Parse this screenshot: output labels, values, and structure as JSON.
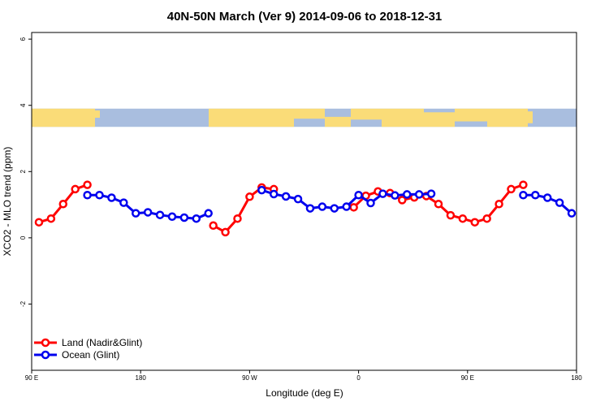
{
  "chart_data": {
    "type": "line",
    "title": "40N-50N March (Ver 9)   2014-09-06 to 2018-12-31",
    "xlabel": "Longitude (deg E)",
    "ylabel": "XCO2 - MLO trend (ppm)",
    "x_ticks": [
      {
        "value": 90,
        "label": "90 E"
      },
      {
        "value": 180,
        "label": "180"
      },
      {
        "value": 270,
        "label": "90 W"
      },
      {
        "value": 360,
        "label": "0"
      },
      {
        "value": 450,
        "label": "90 E"
      },
      {
        "value": 540,
        "label": "180"
      }
    ],
    "y_ticks": [
      {
        "value": -2,
        "label": "-2"
      },
      {
        "value": 0,
        "label": "0"
      },
      {
        "value": 2,
        "label": "2"
      },
      {
        "value": 4,
        "label": "4"
      },
      {
        "value": 6,
        "label": "6"
      }
    ],
    "xlim": [
      90,
      540
    ],
    "ylim": [
      -4,
      6.2
    ],
    "map_band": {
      "ylim": [
        3.35,
        3.9
      ],
      "land_color": "#fadc78",
      "ocean_color": "#a9bedf"
    },
    "legend_position": "bottom-left",
    "series": [
      {
        "name": "Land (Nadir&Glint)",
        "color": "#ff0000",
        "segments": [
          [
            [
              96,
              0.47
            ],
            [
              106,
              0.58
            ],
            [
              116,
              1.02
            ],
            [
              126,
              1.47
            ],
            [
              136,
              1.6
            ]
          ],
          [
            [
              240,
              0.37
            ],
            [
              250,
              0.17
            ],
            [
              260,
              0.58
            ],
            [
              270,
              1.24
            ],
            [
              280,
              1.52
            ],
            [
              290,
              1.47
            ]
          ],
          [
            [
              356,
              0.92
            ],
            [
              366,
              1.27
            ],
            [
              376,
              1.4
            ],
            [
              386,
              1.35
            ],
            [
              396,
              1.14
            ],
            [
              406,
              1.22
            ],
            [
              416,
              1.26
            ],
            [
              426,
              1.02
            ],
            [
              436,
              0.68
            ],
            [
              446,
              0.58
            ],
            [
              456,
              0.47
            ],
            [
              466,
              0.58
            ],
            [
              476,
              1.02
            ],
            [
              486,
              1.47
            ],
            [
              496,
              1.6
            ]
          ]
        ]
      },
      {
        "name": "Ocean (Glint)",
        "color": "#0000ee",
        "segments": [
          [
            [
              136,
              1.29
            ],
            [
              146,
              1.29
            ],
            [
              156,
              1.21
            ],
            [
              166,
              1.06
            ],
            [
              176,
              0.74
            ],
            [
              186,
              0.77
            ],
            [
              196,
              0.69
            ],
            [
              206,
              0.64
            ],
            [
              216,
              0.61
            ],
            [
              226,
              0.58
            ],
            [
              236,
              0.74
            ]
          ],
          [
            [
              280,
              1.44
            ],
            [
              290,
              1.32
            ],
            [
              300,
              1.25
            ],
            [
              310,
              1.17
            ],
            [
              320,
              0.89
            ],
            [
              330,
              0.94
            ],
            [
              340,
              0.89
            ],
            [
              350,
              0.94
            ],
            [
              360,
              1.29
            ],
            [
              370,
              1.05
            ],
            [
              380,
              1.33
            ],
            [
              390,
              1.28
            ],
            [
              400,
              1.31
            ],
            [
              410,
              1.31
            ],
            [
              420,
              1.33
            ]
          ],
          [
            [
              496,
              1.29
            ],
            [
              506,
              1.29
            ],
            [
              516,
              1.21
            ],
            [
              526,
              1.06
            ],
            [
              536,
              0.74
            ]
          ]
        ]
      }
    ]
  }
}
